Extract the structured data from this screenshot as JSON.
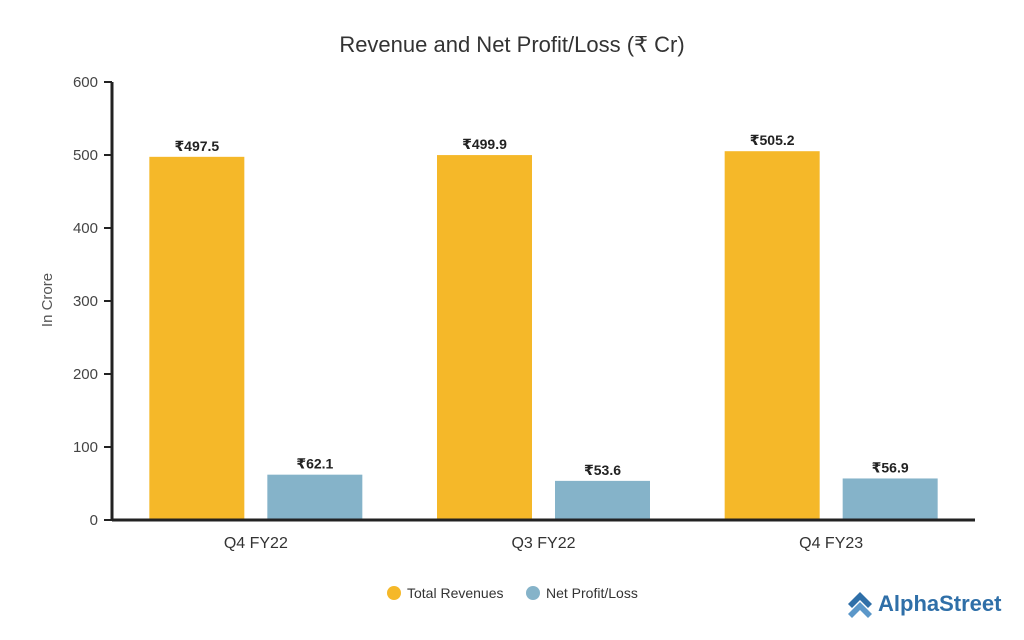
{
  "colors": {
    "revenue": "#f5b829",
    "profit": "#85b3c9",
    "axis": "#222222",
    "brand": "#2f6fa8"
  },
  "chart_data": {
    "type": "bar",
    "title": "Revenue and Net Profit/Loss (₹ Cr)",
    "ylabel": "In Crore",
    "xlabel": "",
    "ylim": [
      0,
      600
    ],
    "yticks": [
      0,
      100,
      200,
      300,
      400,
      500,
      600
    ],
    "categories": [
      "Q4 FY22",
      "Q3 FY22",
      "Q4 FY23"
    ],
    "series": [
      {
        "name": "Total Revenues",
        "values": [
          497.5,
          499.9,
          505.2
        ],
        "labels": [
          "₹497.5",
          "₹499.9",
          "₹505.2"
        ]
      },
      {
        "name": "Net Profit/Loss",
        "values": [
          62.1,
          53.6,
          56.9
        ],
        "labels": [
          "₹62.1",
          "₹53.6",
          "₹56.9"
        ]
      }
    ],
    "legend": "bottom-center",
    "grid": false
  },
  "brand": {
    "name": "AlphaStreet",
    "icon": "alphastreet-logo-icon"
  }
}
